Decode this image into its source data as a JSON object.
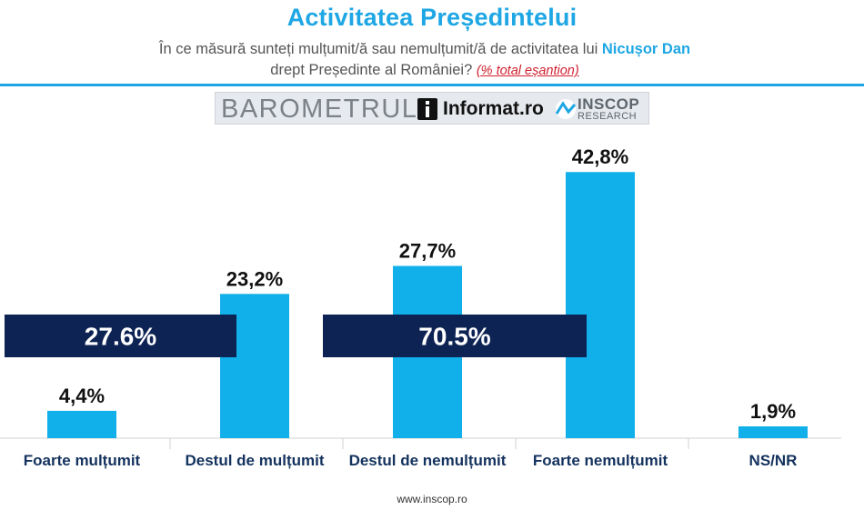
{
  "header": {
    "title": "Activitatea Președintelui",
    "subtitle_line1_pre": "În ce măsură sunteți mulțumit/ă sau nemulțumit/ă de activitatea lui ",
    "subtitle_line1_name": "Nicușor Dan",
    "subtitle_line2_pre": "drept Președinte al României? ",
    "subtitle_note": "(% total eșantion)"
  },
  "logo": {
    "barometru": "BAROMETRUL",
    "informat": "Informat",
    "informat_suffix": ".ro",
    "inscop": "INSCOP",
    "research": "RESEARCH"
  },
  "colors": {
    "bar": "#11b0ea",
    "summary_box": "#0d2353",
    "title": "#1ea7e4",
    "axis_label": "#14325e"
  },
  "chart_data": {
    "type": "bar",
    "categories": [
      "Foarte mulțumit",
      "Destul de mulțumit",
      "Destul de nemulțumit",
      "Foarte nemulțumit",
      "NS/NR"
    ],
    "values": [
      4.4,
      23.2,
      27.7,
      42.8,
      1.9
    ],
    "value_labels": [
      "4,4%",
      "23,2%",
      "27,7%",
      "42,8%",
      "1,9%"
    ],
    "ylim": [
      0,
      50
    ],
    "grid": false,
    "summaries": [
      {
        "label": "27.6%",
        "covers": [
          "Foarte mulțumit",
          "Destul de mulțumit"
        ]
      },
      {
        "label": "70.5%",
        "covers": [
          "Destul de nemulțumit",
          "Foarte nemulțumit"
        ]
      }
    ]
  },
  "footer": {
    "url": "www.inscop.ro"
  }
}
